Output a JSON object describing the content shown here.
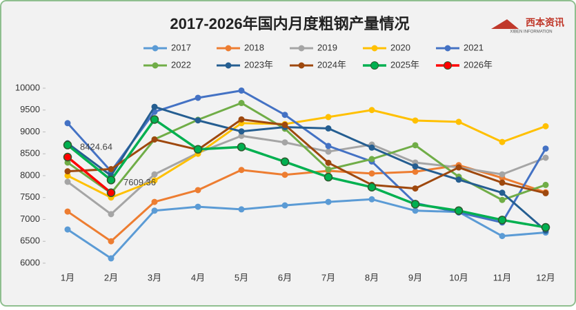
{
  "chart_data": {
    "type": "line",
    "title": "2017-2026年国内月度粗钢产量情况",
    "logo": {
      "name": "西本资讯",
      "subtitle": "XIBEN INFORMATION"
    },
    "categories": [
      "1月",
      "2月",
      "3月",
      "4月",
      "5月",
      "6月",
      "7月",
      "8月",
      "9月",
      "10月",
      "11月",
      "12月"
    ],
    "ylim": [
      6000,
      10000
    ],
    "yticks": [
      6000,
      6500,
      7000,
      7500,
      8000,
      8500,
      9000,
      9500,
      10000
    ],
    "grid": false,
    "legend": "top",
    "series": [
      {
        "name": "2017",
        "color": "#5b9bd5",
        "values": [
          6770,
          6110,
          7200,
          7290,
          7230,
          7320,
          7400,
          7460,
          7200,
          7170,
          6620,
          6700
        ]
      },
      {
        "name": "2018",
        "color": "#ed7d31",
        "values": [
          7180,
          6500,
          7400,
          7670,
          8130,
          8020,
          8110,
          8050,
          8090,
          8240,
          7950,
          7620
        ]
      },
      {
        "name": "2019",
        "color": "#a5a5a5",
        "values": [
          7860,
          7120,
          8030,
          8520,
          8910,
          8760,
          8550,
          8710,
          8300,
          8190,
          8030,
          8410
        ]
      },
      {
        "name": "2020",
        "color": "#ffc000",
        "values": [
          8000,
          7500,
          7890,
          8500,
          9200,
          9180,
          9340,
          9500,
          9260,
          9230,
          8770,
          9130
        ]
      },
      {
        "name": "2021",
        "color": "#4472c4",
        "values": [
          9200,
          8100,
          9460,
          9780,
          9945,
          9390,
          8679,
          8324,
          7375,
          7158,
          6931,
          8619
        ]
      },
      {
        "name": "2022",
        "color": "#70ad47",
        "values": [
          8300,
          7600,
          8830,
          9277,
          9661,
          9073,
          8143,
          8379,
          8695,
          7976,
          7445,
          7789
        ]
      },
      {
        "name": "2023年",
        "color": "#255e91",
        "values": [
          8740,
          8000,
          9573,
          9264,
          9012,
          9111,
          9080,
          8641,
          8211,
          7909,
          7610,
          6744
        ]
      },
      {
        "name": "2024年",
        "color": "#9e480e",
        "values": [
          8100,
          8150,
          8827,
          8594,
          9286,
          9161,
          8294,
          7790,
          7707,
          8188,
          7840,
          7600
        ]
      },
      {
        "name": "2025年",
        "color": "#00b050",
        "values": [
          8700,
          7900,
          9284,
          8602,
          8655,
          8318,
          7966,
          7737,
          7349,
          7200,
          6987,
          6818
        ]
      },
      {
        "name": "2026年",
        "color": "#ff0000",
        "values": [
          8424.64,
          7609.36,
          null,
          null,
          null,
          null,
          null,
          null,
          null,
          null,
          null,
          null
        ]
      }
    ]
  }
}
